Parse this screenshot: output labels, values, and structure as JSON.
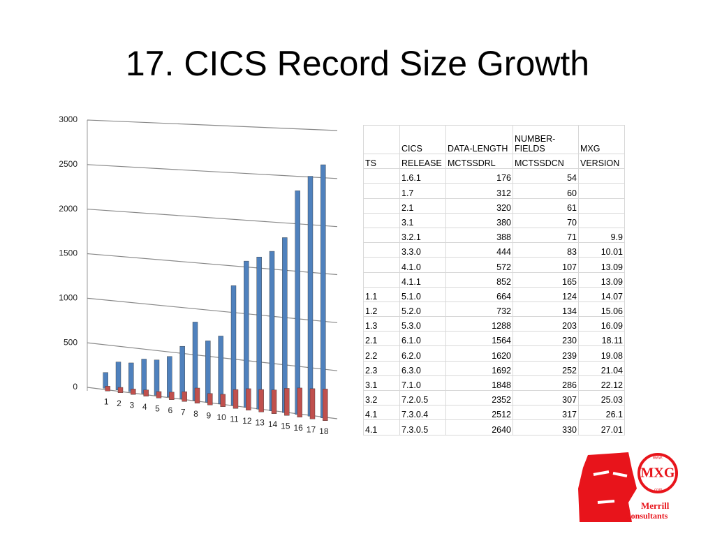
{
  "title": "17. CICS Record Size Growth",
  "chart_data": {
    "type": "bar",
    "categories": [
      "1",
      "2",
      "3",
      "4",
      "5",
      "6",
      "7",
      "8",
      "9",
      "10",
      "11",
      "12",
      "13",
      "14",
      "15",
      "16",
      "17",
      "18"
    ],
    "series": [
      {
        "color": "#4f81bd",
        "values": [
          176,
          312,
          320,
          380,
          388,
          444,
          572,
          852,
          664,
          732,
          1288,
          1564,
          1620,
          1692,
          1848,
          2352,
          2512,
          2640
        ]
      },
      {
        "color": "#c0504d",
        "values": [
          54,
          60,
          61,
          70,
          71,
          83,
          107,
          165,
          124,
          134,
          203,
          230,
          239,
          252,
          286,
          307,
          317,
          330
        ]
      }
    ],
    "ylim": [
      0,
      3000
    ],
    "yticks": [
      0,
      500,
      1000,
      1500,
      2000,
      2500,
      3000
    ],
    "grid": true
  },
  "table": {
    "header": [
      [
        null,
        "CICS",
        "DATA-LENGTH",
        "NUMBER-FIELDS",
        "MXG"
      ],
      [
        "TS",
        "RELEASE",
        "MCTSSDRL",
        "MCTSSDCN",
        "VERSION"
      ]
    ],
    "rows": [
      [
        null,
        "1.6.1",
        176,
        54,
        null
      ],
      [
        null,
        "1.7",
        312,
        60,
        null
      ],
      [
        null,
        "2.1",
        320,
        61,
        null
      ],
      [
        null,
        "3.1",
        380,
        70,
        null
      ],
      [
        null,
        "3.2.1",
        388,
        71,
        "9.9"
      ],
      [
        null,
        "3.3.0",
        444,
        83,
        "10.01"
      ],
      [
        null,
        "4.1.0",
        572,
        107,
        "13.09"
      ],
      [
        null,
        "4.1.1",
        852,
        165,
        "13.09"
      ],
      [
        "1.1",
        "5.1.0",
        664,
        124,
        "14.07"
      ],
      [
        "1.2",
        "5.2.0",
        732,
        134,
        "15.06"
      ],
      [
        "1.3",
        "5.3.0",
        1288,
        203,
        "16.09"
      ],
      [
        "2.1",
        "6.1.0",
        1564,
        230,
        "18.11"
      ],
      [
        "2.2",
        "6.2.0",
        1620,
        239,
        "19.08"
      ],
      [
        "2.3",
        "6.3.0",
        1692,
        252,
        "21.04"
      ],
      [
        "3.1",
        "7.1.0",
        1848,
        286,
        "22.12"
      ],
      [
        "3.2",
        "7.2.0.5",
        2352,
        307,
        "25.03"
      ],
      [
        "4.1",
        "7.3.0.4",
        2512,
        317,
        "26.1"
      ],
      [
        "4.1",
        "7.3.0.5",
        2640,
        330,
        "27.01"
      ]
    ]
  },
  "logo": {
    "badge": "MXG",
    "www": "www.",
    "com": ".com",
    "line1": "Merrill",
    "line2": "Consultants"
  }
}
